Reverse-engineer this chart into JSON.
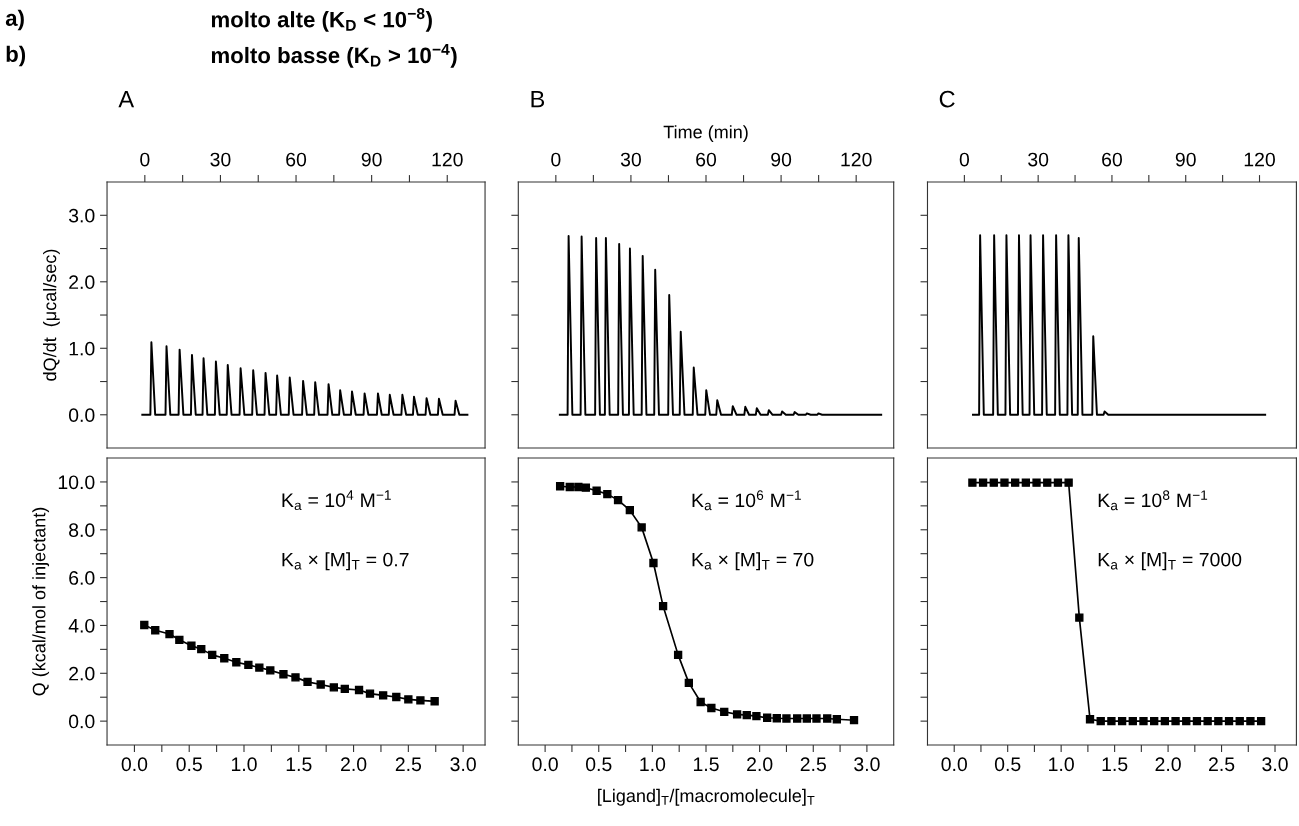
{
  "chart_data": [
    {
      "type": "line",
      "title": "A",
      "ylabel": "dQ/dt  (μcal/sec)",
      "annotations": [
        "a)",
        "molto alte (K$_{D}$ < 10$^{−8}$)",
        "b)",
        "molto basse (K$_{D}$ > 10$^{−4}$)"
      ],
      "xlim": [
        -15,
        135
      ],
      "xticks": [
        0,
        {
          "value": 15,
          "label": null
        },
        30,
        {
          "value": 45,
          "label": null
        },
        60,
        {
          "value": 75,
          "label": null
        },
        90,
        {
          "value": 105,
          "label": null
        },
        120
      ],
      "ylim": [
        -0.5,
        3.5
      ],
      "yticks": [
        {
          "value": 0,
          "label": "0.0"
        },
        {
          "value": 0.5,
          "label": null
        },
        {
          "value": 1,
          "label": "1.0"
        },
        {
          "value": 1.5,
          "label": null
        },
        {
          "value": 2,
          "label": "2.0"
        },
        {
          "value": 2.5,
          "label": null
        },
        {
          "value": 3,
          "label": "3.0"
        }
      ],
      "line_style": "solid",
      "series": [
        {
          "color": "#000000",
          "x": [
            -1,
            2.2,
            2.6,
            4.1,
            8.2,
            8.6,
            10.1,
            13.4,
            13.8,
            15.3,
            18.3,
            18.7,
            20.2,
            22.9,
            23.3,
            24.8,
            27.8,
            28.2,
            29.7,
            32.5,
            32.9,
            34.4,
            37.6,
            38.0,
            39.5,
            42.6,
            43.0,
            44.5,
            47.5,
            47.9,
            49.4,
            52.1,
            52.5,
            54.0,
            57.1,
            57.5,
            59.0,
            62.4,
            62.8,
            64.3,
            67.2,
            67.6,
            69.1,
            72.5,
            72.9,
            74.4,
            77.1,
            77.5,
            79.0,
            81.8,
            82.2,
            83.7,
            86.8,
            87.2,
            88.7,
            92.1,
            92.5,
            94.0,
            96.8,
            97.2,
            98.7,
            101.8,
            102.2,
            103.7,
            106.4,
            106.8,
            108.3,
            111.4,
            111.8,
            113.3,
            116.3,
            116.7,
            118.2,
            122.9,
            123.3,
            124.8,
            128
          ],
          "values": [
            0,
            0,
            1.09,
            0,
            0,
            1.03,
            0,
            0,
            0.98,
            0,
            0,
            0.9,
            0,
            0,
            0.85,
            0,
            0,
            0.8,
            0,
            0,
            0.75,
            0,
            0,
            0.7,
            0,
            0,
            0.67,
            0,
            0,
            0.63,
            0,
            0,
            0.59,
            0,
            0,
            0.56,
            0,
            0,
            0.51,
            0,
            0,
            0.49,
            0,
            0,
            0.46,
            0,
            0,
            0.37,
            0,
            0,
            0.35,
            0,
            0,
            0.32,
            0,
            0,
            0.32,
            0,
            0,
            0.3,
            0,
            0,
            0.3,
            0,
            0,
            0.27,
            0,
            0,
            0.25,
            0,
            0,
            0.24,
            0,
            0,
            0.21,
            0,
            0
          ]
        }
      ]
    },
    {
      "type": "line",
      "title": "B",
      "xlabel": "Time (min)",
      "tick_labels": "x",
      "xlim": [
        -15,
        135
      ],
      "xticks": [
        0,
        {
          "value": 15,
          "label": null
        },
        30,
        {
          "value": 45,
          "label": null
        },
        60,
        {
          "value": 75,
          "label": null
        },
        90,
        {
          "value": 105,
          "label": null
        },
        120
      ],
      "ylim": [
        -0.5,
        3.5
      ],
      "yticks": [
        {
          "value": 0,
          "label": null
        },
        {
          "value": 0.5,
          "label": null
        },
        {
          "value": 1,
          "label": null
        },
        {
          "value": 1.5,
          "label": null
        },
        {
          "value": 2,
          "label": null
        },
        {
          "value": 2.5,
          "label": null
        },
        {
          "value": 3,
          "label": null
        }
      ],
      "line_style": "solid",
      "series": [
        {
          "color": "#000000",
          "x": [
            1.6,
            4.7,
            5.1,
            6.6,
            9.9,
            10.3,
            11.8,
            15.7,
            16.1,
            17.6,
            19.6,
            20.0,
            21.5,
            24.9,
            25.3,
            26.8,
            29.2,
            29.6,
            31.1,
            34.3,
            34.7,
            36.2,
            39.3,
            39.7,
            41.2,
            44.9,
            45.3,
            46.8,
            49.5,
            49.9,
            51.4,
            54.7,
            55.1,
            56.6,
            59.7,
            60.1,
            61.6,
            64.1,
            64.5,
            66.0,
            70.3,
            70.7,
            72.2,
            75.3,
            75.7,
            77.2,
            79.9,
            80.3,
            81.8,
            84.7,
            85.1,
            86.6,
            90.0,
            90.4,
            91.9,
            95.0,
            95.4,
            96.9,
            99.9,
            100.3,
            101.8,
            104.5,
            104.9,
            106.4,
            130
          ],
          "values": [
            0,
            0,
            2.69,
            0,
            0,
            2.68,
            0,
            0,
            2.66,
            0,
            0,
            2.66,
            0,
            0,
            2.57,
            0,
            0,
            2.5,
            0,
            0,
            2.39,
            0,
            0,
            2.18,
            0,
            0,
            1.8,
            0,
            0,
            1.25,
            0,
            0,
            0.71,
            0,
            0,
            0.37,
            0,
            0,
            0.22,
            0,
            0,
            0.13,
            0,
            0,
            0.12,
            0,
            0,
            0.1,
            0,
            0,
            0.07,
            0,
            0,
            0.05,
            0,
            0,
            0.04,
            0,
            0,
            0.02,
            0,
            0,
            0.02,
            0,
            0
          ]
        }
      ]
    },
    {
      "type": "line",
      "title": "C",
      "tick_labels": "x",
      "xlim": [
        -15,
        135
      ],
      "xticks": [
        0,
        {
          "value": 15,
          "label": null
        },
        30,
        {
          "value": 45,
          "label": null
        },
        60,
        {
          "value": 75,
          "label": null
        },
        90,
        {
          "value": 105,
          "label": null
        },
        120
      ],
      "ylim": [
        -0.5,
        3.5
      ],
      "yticks": [
        {
          "value": 0,
          "label": null
        },
        {
          "value": 0.5,
          "label": null
        },
        {
          "value": 1,
          "label": null
        },
        {
          "value": 1.5,
          "label": null
        },
        {
          "value": 2,
          "label": null
        },
        {
          "value": 2.5,
          "label": null
        },
        {
          "value": 3,
          "label": null
        }
      ],
      "line_style": "solid",
      "series": [
        {
          "color": "#000000",
          "x": [
            3.5,
            6.0,
            6.4,
            7.9,
            11.7,
            12.1,
            13.6,
            16.7,
            17.1,
            18.6,
            21.8,
            22.2,
            23.7,
            26.5,
            26.9,
            28.4,
            31.6,
            32.0,
            33.5,
            36.9,
            37.3,
            38.8,
            41.9,
            42.3,
            43.8,
            46.1,
            46.5,
            48.0,
            52.0,
            52.4,
            53.9,
            56.6,
            57.0,
            58.5,
            122.3
          ],
          "values": [
            0,
            0,
            2.7,
            0,
            0,
            2.7,
            0,
            0,
            2.7,
            0,
            0,
            2.7,
            0,
            0,
            2.7,
            0,
            0,
            2.7,
            0,
            0,
            2.7,
            0,
            0,
            2.7,
            0,
            0,
            2.66,
            0,
            0,
            1.18,
            0,
            0,
            0.05,
            0,
            0
          ]
        }
      ]
    },
    {
      "type": "line",
      "ylabel": "Q (kcal/mol of injectant)",
      "annotations": [
        "K$_{a}$ = 10$^{4}$ M$^{−1}$",
        "K$_{a}$ × [M]$_{T}$ = 0.7"
      ],
      "xlim": [
        -0.25,
        3.2
      ],
      "xticks": [
        {
          "value": 0,
          "label": "0.0"
        },
        {
          "value": 0.25,
          "label": null
        },
        {
          "value": 0.5,
          "label": "0.5"
        },
        {
          "value": 0.75,
          "label": null
        },
        {
          "value": 1,
          "label": "1.0"
        },
        {
          "value": 1.25,
          "label": null
        },
        {
          "value": 1.5,
          "label": "1.5"
        },
        {
          "value": 1.75,
          "label": null
        },
        {
          "value": 2,
          "label": "2.0"
        },
        {
          "value": 2.25,
          "label": null
        },
        {
          "value": 2.5,
          "label": "2.5"
        },
        {
          "value": 2.75,
          "label": null
        },
        {
          "value": 3,
          "label": "3.0"
        }
      ],
      "ylim": [
        -1,
        11
      ],
      "yticks": [
        {
          "value": 0,
          "label": "0.0"
        },
        {
          "value": 1,
          "label": null
        },
        {
          "value": 2,
          "label": "2.0"
        },
        {
          "value": 3,
          "label": null
        },
        {
          "value": 4,
          "label": "4.0"
        },
        {
          "value": 5,
          "label": null
        },
        {
          "value": 6,
          "label": "6.0"
        },
        {
          "value": 7,
          "label": null
        },
        {
          "value": 8,
          "label": "8.0"
        },
        {
          "value": 9,
          "label": null
        },
        {
          "value": 10,
          "label": "10.0"
        }
      ],
      "marker": "square",
      "line_style": "solid",
      "series": [
        {
          "color": "#000000",
          "x": [
            0.09,
            0.19,
            0.32,
            0.41,
            0.52,
            0.61,
            0.71,
            0.82,
            0.93,
            1.04,
            1.14,
            1.24,
            1.36,
            1.47,
            1.58,
            1.7,
            1.82,
            1.92,
            2.05,
            2.15,
            2.27,
            2.39,
            2.5,
            2.61,
            2.74
          ],
          "values": [
            4.02,
            3.8,
            3.64,
            3.4,
            3.15,
            3.01,
            2.77,
            2.63,
            2.46,
            2.35,
            2.24,
            2.12,
            1.96,
            1.83,
            1.64,
            1.53,
            1.41,
            1.35,
            1.3,
            1.15,
            1.08,
            1.01,
            0.91,
            0.87,
            0.83
          ]
        }
      ]
    },
    {
      "type": "line",
      "xlabel": "[Ligand]$_{T}$/[macromolecule]$_{T}$",
      "tick_labels": "x",
      "annotations": [
        "K$_{a}$ = 10$^{6}$ M$^{−1}$",
        "K$_{a}$ × [M]$_{T}$ = 70"
      ],
      "xlim": [
        -0.25,
        3.25
      ],
      "xticks": [
        {
          "value": 0,
          "label": "0.0"
        },
        {
          "value": 0.25,
          "label": null
        },
        {
          "value": 0.5,
          "label": "0.5"
        },
        {
          "value": 0.75,
          "label": null
        },
        {
          "value": 1,
          "label": "1.0"
        },
        {
          "value": 1.25,
          "label": null
        },
        {
          "value": 1.5,
          "label": "1.5"
        },
        {
          "value": 1.75,
          "label": null
        },
        {
          "value": 2,
          "label": "2.0"
        },
        {
          "value": 2.25,
          "label": null
        },
        {
          "value": 2.5,
          "label": "2.5"
        },
        {
          "value": 2.75,
          "label": null
        },
        {
          "value": 3,
          "label": "3.0"
        }
      ],
      "ylim": [
        -1,
        11
      ],
      "yticks": [
        {
          "value": 0,
          "label": null
        },
        {
          "value": 1,
          "label": null
        },
        {
          "value": 2,
          "label": null
        },
        {
          "value": 3,
          "label": null
        },
        {
          "value": 4,
          "label": null
        },
        {
          "value": 5,
          "label": null
        },
        {
          "value": 6,
          "label": null
        },
        {
          "value": 7,
          "label": null
        },
        {
          "value": 8,
          "label": null
        },
        {
          "value": 9,
          "label": null
        },
        {
          "value": 10,
          "label": null
        }
      ],
      "marker": "square",
      "line_style": "solid",
      "series": [
        {
          "color": "#000000",
          "x": [
            0.14,
            0.23,
            0.31,
            0.38,
            0.48,
            0.58,
            0.68,
            0.79,
            0.9,
            1.01,
            1.1,
            1.24,
            1.34,
            1.45,
            1.55,
            1.67,
            1.79,
            1.88,
            1.97,
            2.07,
            2.16,
            2.25,
            2.35,
            2.44,
            2.53,
            2.63,
            2.72,
            2.88
          ],
          "values": [
            9.82,
            9.79,
            9.79,
            9.76,
            9.63,
            9.49,
            9.24,
            8.82,
            8.1,
            6.61,
            4.81,
            2.77,
            1.6,
            0.8,
            0.55,
            0.39,
            0.28,
            0.25,
            0.21,
            0.14,
            0.12,
            0.11,
            0.11,
            0.11,
            0.11,
            0.11,
            0.08,
            0.04
          ]
        }
      ]
    },
    {
      "type": "line",
      "tick_labels": "x",
      "annotations": [
        "K$_{a}$ = 10$^{8}$ M$^{−1}$",
        "K$_{a}$ × [M]$_{T}$ = 7000"
      ],
      "xlim": [
        -0.25,
        3.2
      ],
      "xticks": [
        {
          "value": 0,
          "label": "0.0"
        },
        {
          "value": 0.25,
          "label": null
        },
        {
          "value": 0.5,
          "label": "0.5"
        },
        {
          "value": 0.75,
          "label": null
        },
        {
          "value": 1,
          "label": "1.0"
        },
        {
          "value": 1.25,
          "label": null
        },
        {
          "value": 1.5,
          "label": "1.5"
        },
        {
          "value": 1.75,
          "label": null
        },
        {
          "value": 2,
          "label": "2.0"
        },
        {
          "value": 2.25,
          "label": null
        },
        {
          "value": 2.5,
          "label": "2.5"
        },
        {
          "value": 2.75,
          "label": null
        },
        {
          "value": 3,
          "label": "3.0"
        }
      ],
      "ylim": [
        -1,
        11
      ],
      "yticks": [
        {
          "value": 0,
          "label": null
        },
        {
          "value": 1,
          "label": null
        },
        {
          "value": 2,
          "label": null
        },
        {
          "value": 3,
          "label": null
        },
        {
          "value": 4,
          "label": null
        },
        {
          "value": 5,
          "label": null
        },
        {
          "value": 6,
          "label": null
        },
        {
          "value": 7,
          "label": null
        },
        {
          "value": 8,
          "label": null
        },
        {
          "value": 9,
          "label": null
        },
        {
          "value": 10,
          "label": null
        }
      ],
      "marker": "square",
      "line_style": "solid",
      "series": [
        {
          "color": "#000000",
          "x": [
            0.17,
            0.27,
            0.37,
            0.47,
            0.57,
            0.67,
            0.77,
            0.87,
            0.97,
            1.07,
            1.17,
            1.27,
            1.37,
            1.47,
            1.57,
            1.67,
            1.77,
            1.87,
            1.97,
            2.07,
            2.17,
            2.27,
            2.37,
            2.47,
            2.57,
            2.67,
            2.77,
            2.87
          ],
          "values": [
            9.97,
            9.97,
            9.97,
            9.97,
            9.97,
            9.97,
            9.97,
            9.97,
            9.97,
            9.97,
            4.33,
            0.08,
            0,
            0,
            0,
            0,
            0,
            0,
            0,
            0,
            0,
            0,
            0,
            0,
            0,
            0,
            0,
            0
          ]
        }
      ]
    }
  ]
}
